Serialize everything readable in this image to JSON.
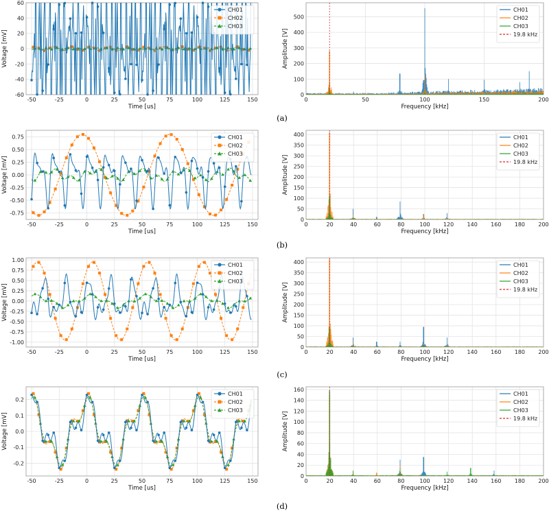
{
  "captions": [
    "(a)",
    "(b)",
    "(c)",
    "(d)"
  ],
  "colors": {
    "ch01": "#1f77b4",
    "ch02": "#ff7f0e",
    "ch03": "#2ca02c",
    "ref": "#d62728"
  },
  "chart_data": [
    {
      "id": "a-time",
      "type": "line",
      "xlabel": "Time [us]",
      "ylabel": "Voltage [mV]",
      "xlim": [
        -55,
        155
      ],
      "ylim": [
        -60,
        60
      ],
      "xticks": [
        "-50",
        "-25",
        "0",
        "25",
        "50",
        "75",
        "100",
        "125",
        "150"
      ],
      "yticks": [
        "-60",
        "-40",
        "-20",
        "0",
        "20",
        "40",
        "60"
      ],
      "legend": [
        "CH01",
        "CH02",
        "CH03"
      ],
      "legend_loc": "top-right",
      "series": [
        {
          "name": "CH01",
          "kind": "noise",
          "amps": [
            48,
            38,
            30,
            22
          ],
          "freqs": [
            0.23,
            0.39,
            0.61,
            0.83
          ],
          "phases": [
            0.3,
            1.7,
            2.9,
            4.1
          ]
        },
        {
          "name": "CH02",
          "kind": "sine",
          "amp": 2.5,
          "freq": 0.06,
          "phase": 0.4
        },
        {
          "name": "CH03",
          "kind": "sine",
          "amp": 1.0,
          "freq": 0.11,
          "phase": 1.2
        }
      ]
    },
    {
      "id": "a-freq",
      "type": "line",
      "xlabel": "Frequency [kHz]",
      "ylabel": "Amplitude [V]",
      "xlim": [
        0,
        200
      ],
      "ylim": [
        0,
        590
      ],
      "xticks": [
        "0",
        "50",
        "100",
        "150",
        "200"
      ],
      "yticks": [
        "0",
        "100",
        "200",
        "300",
        "400",
        "500"
      ],
      "legend": [
        "CH01",
        "CH02",
        "CH03",
        "19.8 kHz"
      ],
      "legend_loc": "top-right",
      "ref_line": 19.8,
      "series": [
        {
          "name": "CH01",
          "floor": 8,
          "rise": [
            [
              60,
              25
            ],
            [
              200,
              175
            ]
          ],
          "peaks": [
            [
              19.8,
              80
            ],
            [
              40,
              20
            ],
            [
              79,
              135
            ],
            [
              100,
              555
            ],
            [
              120,
              100
            ],
            [
              150,
              95
            ],
            [
              180,
              80
            ],
            [
              188,
              150
            ]
          ]
        },
        {
          "name": "CH02",
          "floor": 5,
          "rise": [
            [
              80,
              15
            ],
            [
              200,
              20
            ]
          ],
          "peaks": [
            [
              19.8,
              280
            ],
            [
              100,
              130
            ]
          ]
        },
        {
          "name": "CH03",
          "floor": 3,
          "rise": [
            [
              100,
              5
            ],
            [
              200,
              5
            ]
          ],
          "peaks": [
            [
              19.8,
              40
            ],
            [
              100,
              25
            ]
          ]
        }
      ]
    },
    {
      "id": "b-time",
      "type": "line",
      "xlabel": "Time [us]",
      "ylabel": "Voltage [mV]",
      "xlim": [
        -55,
        155
      ],
      "ylim": [
        -0.88,
        0.88
      ],
      "xticks": [
        "-50",
        "-25",
        "0",
        "25",
        "50",
        "75",
        "100",
        "125",
        "150"
      ],
      "yticks": [
        "-0.75",
        "-0.50",
        "-0.25",
        "0.00",
        "0.25",
        "0.50",
        "0.75"
      ],
      "legend": [
        "CH01",
        "CH02",
        "CH03"
      ],
      "legend_loc": "top-right",
      "series": [
        {
          "name": "CH01",
          "kind": "multi",
          "amps": [
            0.35,
            0.25,
            0.1
          ],
          "freqs": [
            0.063,
            0.126,
            0.19
          ],
          "phases": [
            0.2,
            1.1,
            2.4
          ]
        },
        {
          "name": "CH02",
          "kind": "sine",
          "amp": 0.8,
          "freq": 0.0126,
          "phase": 1.9
        },
        {
          "name": "CH03",
          "kind": "multi",
          "amps": [
            0.08,
            0.06
          ],
          "freqs": [
            0.025,
            0.076
          ],
          "phases": [
            0.4,
            2.2
          ]
        }
      ]
    },
    {
      "id": "b-freq",
      "type": "line",
      "xlabel": "Frequency [kHz]",
      "ylabel": "Amplitude [V]",
      "xlim": [
        0,
        200
      ],
      "ylim": [
        0,
        420
      ],
      "xticks": [
        "0",
        "20",
        "40",
        "60",
        "80",
        "100",
        "120",
        "140",
        "160",
        "180",
        "200"
      ],
      "yticks": [
        "0",
        "50",
        "100",
        "150",
        "200",
        "250",
        "300",
        "350",
        "400"
      ],
      "legend": [
        "CH01",
        "CH02",
        "CH03",
        "19.8 kHz"
      ],
      "legend_loc": "top-right",
      "ref_line": 19.8,
      "series": [
        {
          "name": "CH01",
          "floor": 2,
          "rise": [],
          "peaks": [
            [
              19.8,
              120
            ],
            [
              39.6,
              50
            ],
            [
              59.4,
              12
            ],
            [
              79.2,
              85
            ],
            [
              99,
              25
            ],
            [
              118.8,
              30
            ]
          ]
        },
        {
          "name": "CH02",
          "floor": 2,
          "rise": [],
          "peaks": [
            [
              19.8,
              410
            ],
            [
              39.6,
              20
            ],
            [
              99,
              20
            ],
            [
              118.8,
              8
            ]
          ]
        },
        {
          "name": "CH03",
          "floor": 1,
          "rise": [],
          "peaks": [
            [
              19.8,
              110
            ],
            [
              39.6,
              12
            ]
          ]
        }
      ]
    },
    {
      "id": "c-time",
      "type": "line",
      "xlabel": "Time [us]",
      "ylabel": "Voltage [mV]",
      "xlim": [
        -55,
        155
      ],
      "ylim": [
        -1.12,
        1.05
      ],
      "xticks": [
        "-50",
        "-25",
        "0",
        "25",
        "50",
        "75",
        "100",
        "125",
        "150"
      ],
      "yticks": [
        "-1.00",
        "-0.75",
        "-0.50",
        "-0.25",
        "0.00",
        "0.25",
        "0.50",
        "0.75",
        "1.00"
      ],
      "legend": [
        "CH01",
        "CH02",
        "CH03"
      ],
      "legend_loc": "top-right",
      "series": [
        {
          "name": "CH01",
          "kind": "multi",
          "amps": [
            0.35,
            0.2,
            0.12
          ],
          "freqs": [
            0.05,
            0.1,
            0.17
          ],
          "phases": [
            1.2,
            0.4,
            2.8
          ]
        },
        {
          "name": "CH02",
          "kind": "sine",
          "amp": 0.95,
          "freq": 0.02,
          "phase": 0.9
        },
        {
          "name": "CH03",
          "kind": "multi",
          "amps": [
            0.12,
            0.05
          ],
          "freqs": [
            0.02,
            0.06
          ],
          "phases": [
            1.1,
            0.2
          ]
        }
      ]
    },
    {
      "id": "c-freq",
      "type": "line",
      "xlabel": "Frequency [kHz]",
      "ylabel": "Amplitude [V]",
      "xlim": [
        0,
        200
      ],
      "ylim": [
        0,
        420
      ],
      "xticks": [
        "0",
        "20",
        "40",
        "60",
        "80",
        "100",
        "120",
        "140",
        "160",
        "180",
        "200"
      ],
      "yticks": [
        "0",
        "50",
        "100",
        "150",
        "200",
        "250",
        "300",
        "350",
        "400"
      ],
      "legend": [
        "CH01",
        "CH02",
        "CH03",
        "19.8 kHz"
      ],
      "legend_loc": "top-right",
      "ref_line": 19.8,
      "series": [
        {
          "name": "CH01",
          "floor": 2,
          "rise": [],
          "peaks": [
            [
              19.8,
              100
            ],
            [
              39.6,
              45
            ],
            [
              59.4,
              25
            ],
            [
              79.2,
              25
            ],
            [
              99,
              95
            ],
            [
              118.8,
              45
            ]
          ]
        },
        {
          "name": "CH02",
          "floor": 2,
          "rise": [],
          "peaks": [
            [
              19.8,
              415
            ],
            [
              39.6,
              20
            ],
            [
              99,
              15
            ],
            [
              118.8,
              10
            ]
          ]
        },
        {
          "name": "CH03",
          "floor": 1,
          "rise": [],
          "peaks": [
            [
              19.8,
              90
            ],
            [
              39.6,
              10
            ],
            [
              99,
              10
            ]
          ]
        }
      ]
    },
    {
      "id": "d-time",
      "type": "line",
      "xlabel": "Time [us]",
      "ylabel": "Voltage [mV]",
      "xlim": [
        -55,
        155
      ],
      "ylim": [
        -0.28,
        0.28
      ],
      "xticks": [
        "-50",
        "-25",
        "0",
        "25",
        "50",
        "75",
        "100",
        "125",
        "150"
      ],
      "yticks": [
        "-0.2",
        "-0.1",
        "0.0",
        "0.1",
        "0.2"
      ],
      "legend": [
        "CH01",
        "CH02",
        "CH03"
      ],
      "legend_loc": "top-right",
      "series": [
        {
          "name": "CH01",
          "kind": "multi",
          "amps": [
            0.15,
            0.08,
            0.04
          ],
          "freqs": [
            0.02,
            0.06,
            0.14
          ],
          "phases": [
            1.5,
            0.6,
            2.1
          ]
        },
        {
          "name": "CH02",
          "kind": "multi",
          "amps": [
            0.18,
            0.07
          ],
          "freqs": [
            0.02,
            0.06
          ],
          "phases": [
            1.7,
            0.7
          ]
        },
        {
          "name": "CH03",
          "kind": "multi",
          "amps": [
            0.17,
            0.06
          ],
          "freqs": [
            0.02,
            0.06
          ],
          "phases": [
            1.65,
            0.65
          ]
        }
      ]
    },
    {
      "id": "d-freq",
      "type": "line",
      "xlabel": "Frequency [kHz]",
      "ylabel": "Amplitude [V]",
      "xlim": [
        0,
        200
      ],
      "ylim": [
        0,
        165
      ],
      "xticks": [
        "0",
        "20",
        "40",
        "60",
        "80",
        "100",
        "120",
        "140",
        "160",
        "180",
        "200"
      ],
      "yticks": [
        "0",
        "20",
        "40",
        "60",
        "80",
        "100",
        "120",
        "140",
        "160"
      ],
      "legend": [
        "CH01",
        "CH02",
        "CH03",
        "19.8 kHz"
      ],
      "legend_loc": "top-right",
      "ref_line": 19.8,
      "series": [
        {
          "name": "CH01",
          "floor": 1,
          "rise": [],
          "peaks": [
            [
              19.8,
              60
            ],
            [
              79.2,
              30
            ],
            [
              99,
              35
            ],
            [
              158.4,
              10
            ]
          ]
        },
        {
          "name": "CH02",
          "floor": 1,
          "rise": [],
          "peaks": [
            [
              19.8,
              150
            ],
            [
              39.6,
              8
            ],
            [
              59.4,
              6
            ],
            [
              79.2,
              20
            ]
          ]
        },
        {
          "name": "CH03",
          "floor": 1,
          "rise": [],
          "peaks": [
            [
              19.8,
              158
            ],
            [
              39.6,
              10
            ],
            [
              79.2,
              15
            ],
            [
              118.8,
              8
            ],
            [
              138.6,
              15
            ]
          ]
        }
      ]
    }
  ]
}
